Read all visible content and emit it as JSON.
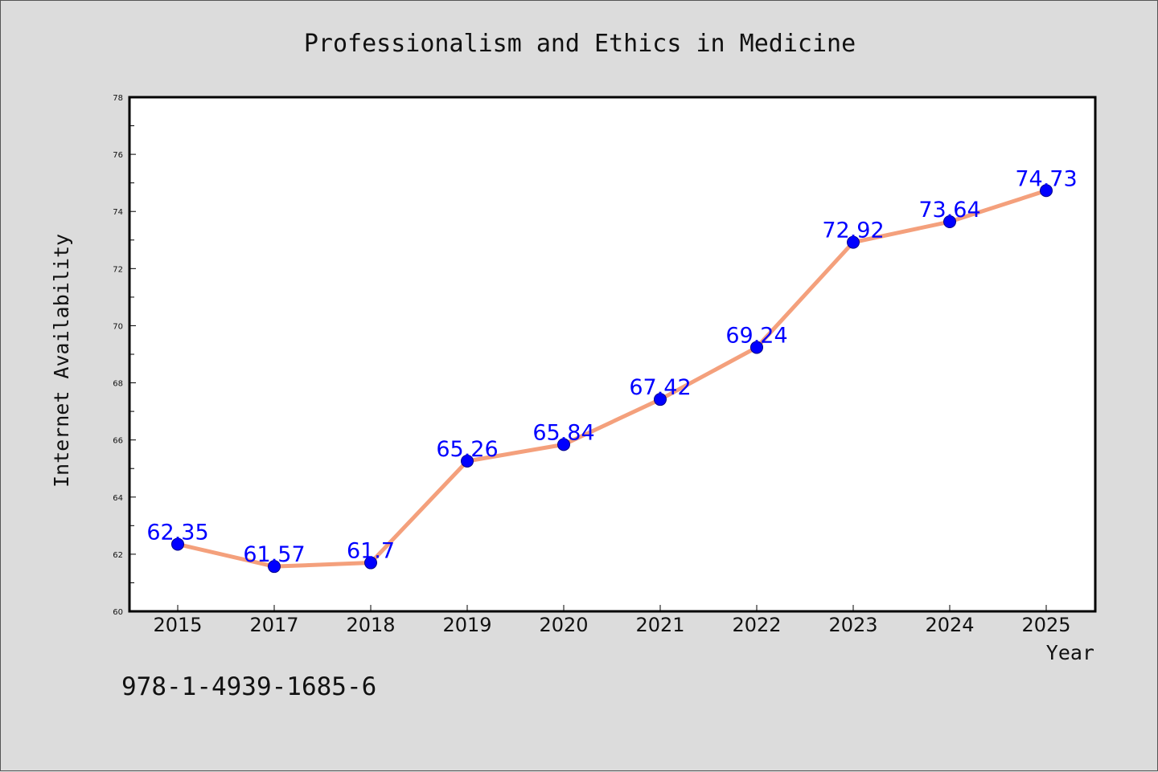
{
  "footer_text": "978-1-4939-1685-6",
  "colors": {
    "background": "#dcdcdc",
    "plot_background": "#ffffff",
    "line": "#f4a07c",
    "marker": "#0000ff",
    "data_label": "#0000ff"
  },
  "chart_data": {
    "type": "line",
    "title": "Professionalism and Ethics in Medicine",
    "xlabel": "Year",
    "ylabel": "Internet Availability",
    "categories": [
      "2015",
      "2017",
      "2018",
      "2019",
      "2020",
      "2021",
      "2022",
      "2023",
      "2024",
      "2025"
    ],
    "series": [
      {
        "values": [
          62.35,
          61.57,
          61.7,
          65.26,
          65.84,
          67.42,
          69.24,
          72.92,
          73.64,
          74.73
        ],
        "labels": [
          "62.35",
          "61.57",
          "61.7",
          "65.26",
          "65.84",
          "67.42",
          "69.24",
          "72.92",
          "73.64",
          "74.73"
        ]
      }
    ],
    "ylim": [
      60,
      78
    ],
    "yticks": [
      "60",
      "62",
      "64",
      "66",
      "68",
      "70",
      "72",
      "74",
      "76",
      "78"
    ],
    "grid": false,
    "legend": "none"
  }
}
